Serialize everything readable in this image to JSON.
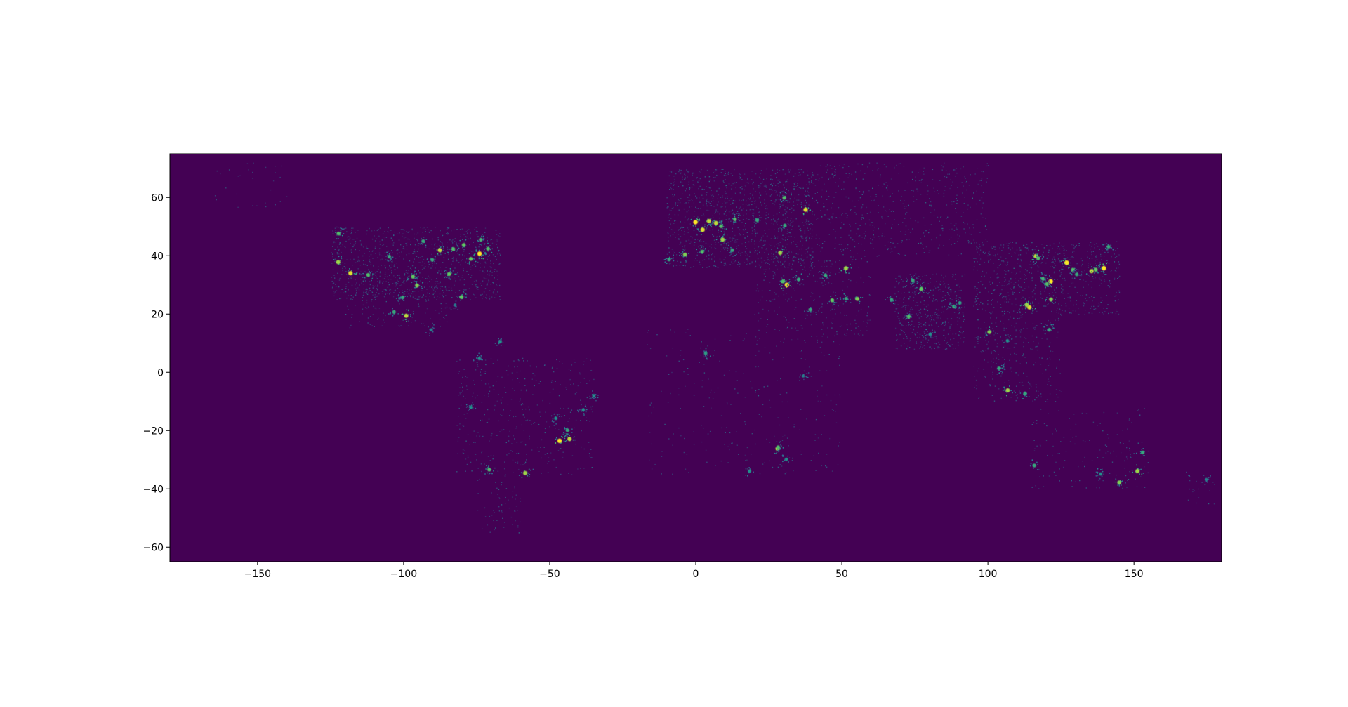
{
  "figure": {
    "background": "#ffffff",
    "map_background": "#440154"
  },
  "chart_data": {
    "type": "heatmap",
    "title": "",
    "xlabel": "",
    "ylabel": "",
    "xlim": [
      -180,
      180
    ],
    "ylim": [
      -65,
      75
    ],
    "xticks": [
      -150,
      -100,
      -50,
      0,
      50,
      100,
      150
    ],
    "yticks": [
      -60,
      -40,
      -20,
      0,
      20,
      40,
      60
    ],
    "xtick_labels": [
      "−150",
      "−100",
      "−50",
      "0",
      "50",
      "100",
      "150"
    ],
    "ytick_labels": [
      "−60",
      "−40",
      "−20",
      "0",
      "20",
      "40",
      "60"
    ],
    "colormap": "viridis",
    "colors": {
      "low": "#440154",
      "mid_low": "#31688e",
      "mid": "#21918c",
      "mid_high": "#5ec962",
      "high": "#fde725"
    },
    "grid": false,
    "legend": "none",
    "hotspots": [
      {
        "lon": -74.0,
        "lat": 40.7,
        "v": 1.0
      },
      {
        "lon": -87.6,
        "lat": 41.9,
        "v": 0.9
      },
      {
        "lon": -118.2,
        "lat": 34.0,
        "v": 0.95
      },
      {
        "lon": -122.4,
        "lat": 37.8,
        "v": 0.85
      },
      {
        "lon": -95.4,
        "lat": 29.8,
        "v": 0.8
      },
      {
        "lon": -84.4,
        "lat": 33.7,
        "v": 0.75
      },
      {
        "lon": -80.2,
        "lat": 25.8,
        "v": 0.75
      },
      {
        "lon": -77.0,
        "lat": 38.9,
        "v": 0.75
      },
      {
        "lon": -71.1,
        "lat": 42.4,
        "v": 0.7
      },
      {
        "lon": -96.8,
        "lat": 32.8,
        "v": 0.75
      },
      {
        "lon": -112.1,
        "lat": 33.4,
        "v": 0.7
      },
      {
        "lon": -104.9,
        "lat": 39.7,
        "v": 0.6
      },
      {
        "lon": -122.3,
        "lat": 47.6,
        "v": 0.7
      },
      {
        "lon": -83.0,
        "lat": 42.3,
        "v": 0.7
      },
      {
        "lon": -79.4,
        "lat": 43.7,
        "v": 0.75
      },
      {
        "lon": -73.6,
        "lat": 45.5,
        "v": 0.65
      },
      {
        "lon": -90.2,
        "lat": 38.6,
        "v": 0.6
      },
      {
        "lon": -93.3,
        "lat": 45.0,
        "v": 0.6
      },
      {
        "lon": -99.1,
        "lat": 19.4,
        "v": 0.9
      },
      {
        "lon": -103.3,
        "lat": 20.7,
        "v": 0.6
      },
      {
        "lon": -100.3,
        "lat": 25.7,
        "v": 0.6
      },
      {
        "lon": -90.5,
        "lat": 14.6,
        "v": 0.4
      },
      {
        "lon": -82.4,
        "lat": 23.1,
        "v": 0.35
      },
      {
        "lon": -74.1,
        "lat": 4.7,
        "v": 0.5
      },
      {
        "lon": -66.9,
        "lat": 10.5,
        "v": 0.5
      },
      {
        "lon": -77.0,
        "lat": -12.0,
        "v": 0.5
      },
      {
        "lon": -46.6,
        "lat": -23.5,
        "v": 1.0
      },
      {
        "lon": -43.2,
        "lat": -22.9,
        "v": 0.9
      },
      {
        "lon": -43.9,
        "lat": -19.9,
        "v": 0.6
      },
      {
        "lon": -58.4,
        "lat": -34.6,
        "v": 0.85
      },
      {
        "lon": -70.7,
        "lat": -33.4,
        "v": 0.7
      },
      {
        "lon": -47.9,
        "lat": -15.8,
        "v": 0.5
      },
      {
        "lon": -38.5,
        "lat": -12.9,
        "v": 0.5
      },
      {
        "lon": -34.9,
        "lat": -8.0,
        "v": 0.5
      },
      {
        "lon": -0.1,
        "lat": 51.5,
        "v": 1.0
      },
      {
        "lon": 2.35,
        "lat": 48.9,
        "v": 0.95
      },
      {
        "lon": 4.5,
        "lat": 51.9,
        "v": 0.9
      },
      {
        "lon": 6.9,
        "lat": 51.2,
        "v": 0.9
      },
      {
        "lon": 8.7,
        "lat": 50.1,
        "v": 0.7
      },
      {
        "lon": 13.4,
        "lat": 52.5,
        "v": 0.7
      },
      {
        "lon": 9.2,
        "lat": 45.5,
        "v": 0.85
      },
      {
        "lon": 12.5,
        "lat": 41.9,
        "v": 0.6
      },
      {
        "lon": -3.7,
        "lat": 40.4,
        "v": 0.8
      },
      {
        "lon": 2.2,
        "lat": 41.4,
        "v": 0.7
      },
      {
        "lon": -9.1,
        "lat": 38.7,
        "v": 0.6
      },
      {
        "lon": 37.6,
        "lat": 55.8,
        "v": 0.95
      },
      {
        "lon": 30.3,
        "lat": 59.9,
        "v": 0.7
      },
      {
        "lon": 28.9,
        "lat": 41.0,
        "v": 0.85
      },
      {
        "lon": 21.0,
        "lat": 52.2,
        "v": 0.6
      },
      {
        "lon": 30.5,
        "lat": 50.4,
        "v": 0.6
      },
      {
        "lon": 31.2,
        "lat": 30.0,
        "v": 1.0
      },
      {
        "lon": 29.9,
        "lat": 31.2,
        "v": 0.7
      },
      {
        "lon": 35.2,
        "lat": 31.9,
        "v": 0.6
      },
      {
        "lon": 44.4,
        "lat": 33.3,
        "v": 0.6
      },
      {
        "lon": 51.4,
        "lat": 35.7,
        "v": 0.85
      },
      {
        "lon": 55.3,
        "lat": 25.2,
        "v": 0.8
      },
      {
        "lon": 51.5,
        "lat": 25.3,
        "v": 0.6
      },
      {
        "lon": 46.7,
        "lat": 24.7,
        "v": 0.75
      },
      {
        "lon": 39.2,
        "lat": 21.5,
        "v": 0.6
      },
      {
        "lon": 72.9,
        "lat": 19.1,
        "v": 0.7
      },
      {
        "lon": 77.2,
        "lat": 28.6,
        "v": 0.75
      },
      {
        "lon": 88.4,
        "lat": 22.6,
        "v": 0.6
      },
      {
        "lon": 80.3,
        "lat": 13.1,
        "v": 0.5
      },
      {
        "lon": 67.0,
        "lat": 24.9,
        "v": 0.6
      },
      {
        "lon": 74.3,
        "lat": 31.5,
        "v": 0.6
      },
      {
        "lon": 90.4,
        "lat": 23.8,
        "v": 0.55
      },
      {
        "lon": 100.5,
        "lat": 13.8,
        "v": 0.8
      },
      {
        "lon": 106.7,
        "lat": 10.8,
        "v": 0.5
      },
      {
        "lon": 103.8,
        "lat": 1.35,
        "v": 0.6
      },
      {
        "lon": 106.8,
        "lat": -6.2,
        "v": 0.85
      },
      {
        "lon": 112.7,
        "lat": -7.3,
        "v": 0.6
      },
      {
        "lon": 121.0,
        "lat": 14.6,
        "v": 0.6
      },
      {
        "lon": 114.2,
        "lat": 22.3,
        "v": 0.95
      },
      {
        "lon": 113.3,
        "lat": 23.1,
        "v": 0.85
      },
      {
        "lon": 121.5,
        "lat": 31.2,
        "v": 1.0
      },
      {
        "lon": 116.4,
        "lat": 39.9,
        "v": 0.9
      },
      {
        "lon": 117.2,
        "lat": 39.1,
        "v": 0.7
      },
      {
        "lon": 120.2,
        "lat": 30.3,
        "v": 0.7
      },
      {
        "lon": 118.8,
        "lat": 32.1,
        "v": 0.65
      },
      {
        "lon": 121.6,
        "lat": 25.0,
        "v": 0.8
      },
      {
        "lon": 126.98,
        "lat": 37.6,
        "v": 1.0
      },
      {
        "lon": 129.1,
        "lat": 35.2,
        "v": 0.7
      },
      {
        "lon": 139.7,
        "lat": 35.7,
        "v": 1.0
      },
      {
        "lon": 135.5,
        "lat": 34.7,
        "v": 0.9
      },
      {
        "lon": 136.9,
        "lat": 35.2,
        "v": 0.75
      },
      {
        "lon": 130.4,
        "lat": 33.6,
        "v": 0.6
      },
      {
        "lon": 141.3,
        "lat": 43.1,
        "v": 0.6
      },
      {
        "lon": 28.0,
        "lat": -26.2,
        "v": 0.9
      },
      {
        "lon": 28.2,
        "lat": -25.7,
        "v": 0.7
      },
      {
        "lon": 18.4,
        "lat": -33.9,
        "v": 0.5
      },
      {
        "lon": 31.0,
        "lat": -29.9,
        "v": 0.5
      },
      {
        "lon": 3.4,
        "lat": 6.5,
        "v": 0.55
      },
      {
        "lon": 36.8,
        "lat": -1.3,
        "v": 0.4
      },
      {
        "lon": 151.2,
        "lat": -33.9,
        "v": 0.85
      },
      {
        "lon": 144.96,
        "lat": -37.8,
        "v": 0.8
      },
      {
        "lon": 153.0,
        "lat": -27.5,
        "v": 0.6
      },
      {
        "lon": 115.9,
        "lat": -32.0,
        "v": 0.6
      },
      {
        "lon": 138.6,
        "lat": -34.9,
        "v": 0.5
      },
      {
        "lon": 174.8,
        "lat": -36.8,
        "v": 0.4
      }
    ]
  }
}
